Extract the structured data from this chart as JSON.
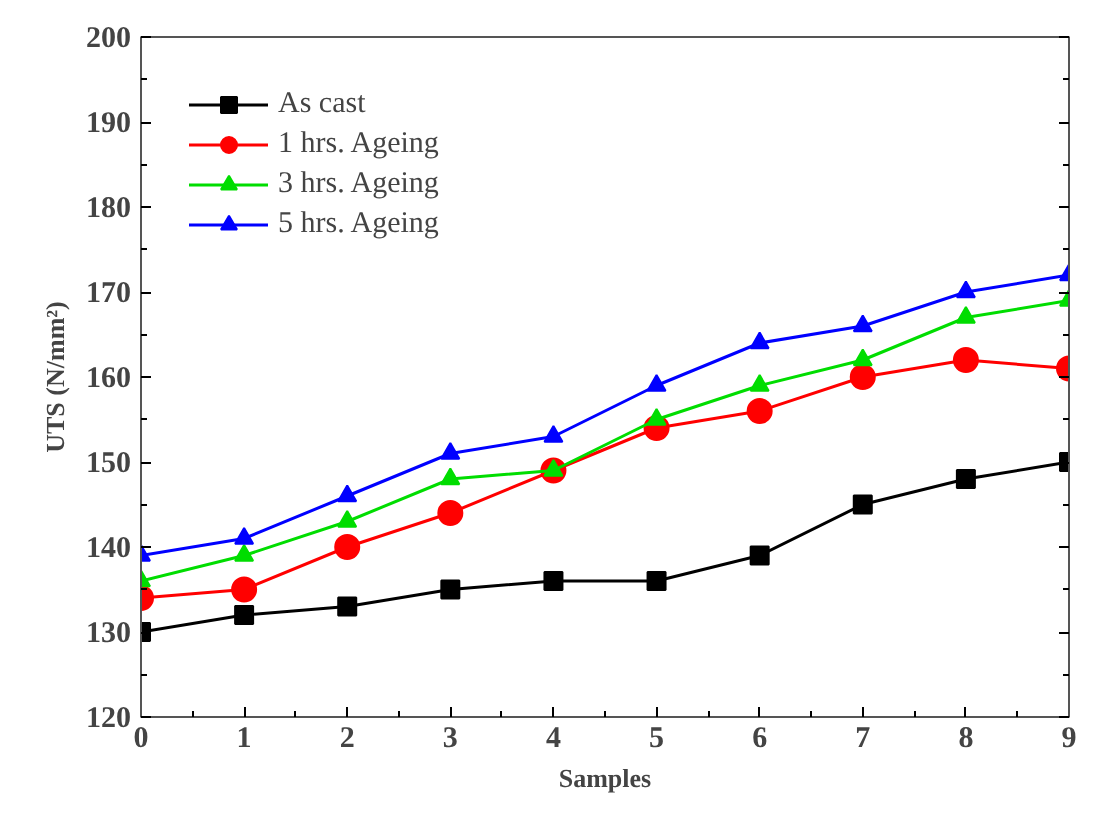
{
  "chart_data": {
    "type": "line",
    "xlabel": "Samples",
    "ylabel": "UTS (N/mm²)",
    "x": [
      0,
      1,
      2,
      3,
      4,
      5,
      6,
      7,
      8,
      9
    ],
    "xlim": [
      0,
      9
    ],
    "ylim": [
      120,
      200
    ],
    "xticks": [
      0,
      1,
      2,
      3,
      4,
      5,
      6,
      7,
      8,
      9
    ],
    "yticks": [
      120,
      130,
      140,
      150,
      160,
      170,
      180,
      190,
      200
    ],
    "grid": false,
    "legend": "top left",
    "series": [
      {
        "name": "As cast",
        "color": "#000000",
        "marker": "square",
        "values": [
          130,
          132,
          133,
          135,
          136,
          136,
          139,
          145,
          148,
          150
        ]
      },
      {
        "name": "1 hrs. Ageing",
        "color": "#ff0000",
        "marker": "circle",
        "values": [
          134,
          135,
          140,
          144,
          149,
          154,
          156,
          160,
          162,
          161
        ]
      },
      {
        "name": "3 hrs. Ageing",
        "color": "#00dd00",
        "marker": "triangle",
        "values": [
          136,
          139,
          143,
          148,
          149,
          155,
          159,
          162,
          167,
          169
        ]
      },
      {
        "name": "5 hrs. Ageing",
        "color": "#0000ff",
        "marker": "triangle",
        "values": [
          139,
          141,
          146,
          151,
          153,
          159,
          164,
          166,
          170,
          172
        ]
      }
    ]
  }
}
